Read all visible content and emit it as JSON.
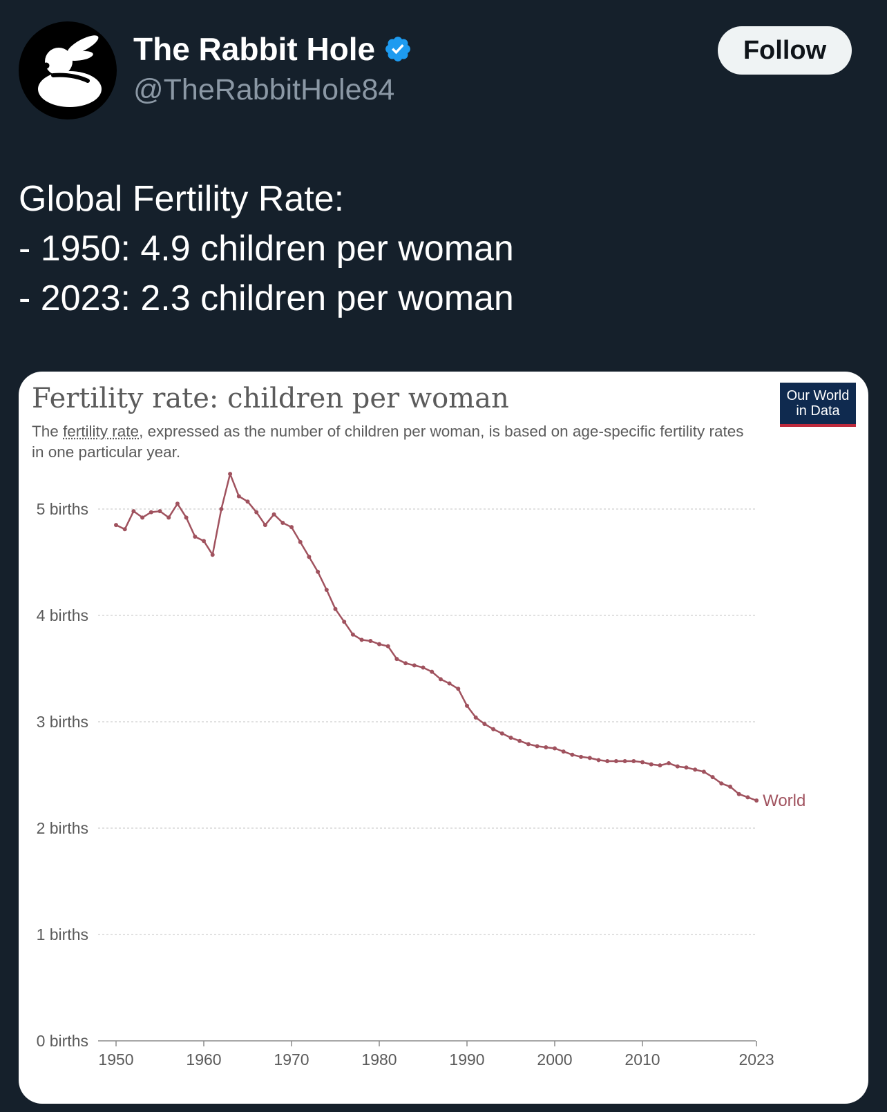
{
  "tweet": {
    "display_name": "The Rabbit Hole",
    "handle": "@TheRabbitHole84",
    "follow_label": "Follow",
    "text_lines": [
      "Global Fertility Rate:",
      "- 1950: 4.9 children per woman",
      "- 2023: 2.3 children per woman"
    ]
  },
  "card": {
    "title": "Fertility rate: children per woman",
    "subtitle_prefix": "The ",
    "subtitle_term": "fertility rate",
    "subtitle_rest": ", expressed as the number of children per woman, is based on age-specific fertility rates in one particular year.",
    "logo_line1": "Our World",
    "logo_line2": "in Data"
  },
  "colors": {
    "background": "#15202b",
    "series": "#a0525e",
    "verified": "#1d9bf0",
    "logo_bg": "#0f2a4f",
    "logo_accent": "#be2a3c"
  },
  "chart_data": {
    "type": "line",
    "title": "Fertility rate: children per woman",
    "ylim": [
      0,
      5.5
    ],
    "xlim": [
      1950,
      2023
    ],
    "y_ticks": [
      {
        "value": 0,
        "label": "0 births"
      },
      {
        "value": 1,
        "label": "1 births"
      },
      {
        "value": 2,
        "label": "2 births"
      },
      {
        "value": 3,
        "label": "3 births"
      },
      {
        "value": 4,
        "label": "4 births"
      },
      {
        "value": 5,
        "label": "5 births"
      }
    ],
    "x_ticks": [
      {
        "value": 1950,
        "label": "1950"
      },
      {
        "value": 1960,
        "label": "1960"
      },
      {
        "value": 1970,
        "label": "1970"
      },
      {
        "value": 1980,
        "label": "1980"
      },
      {
        "value": 1990,
        "label": "1990"
      },
      {
        "value": 2000,
        "label": "2000"
      },
      {
        "value": 2010,
        "label": "2010"
      },
      {
        "value": 2023,
        "label": "2023"
      }
    ],
    "grid": true,
    "series": [
      {
        "name": "World",
        "x": [
          1950,
          1951,
          1952,
          1953,
          1954,
          1955,
          1956,
          1957,
          1958,
          1959,
          1960,
          1961,
          1962,
          1963,
          1964,
          1965,
          1966,
          1967,
          1968,
          1969,
          1970,
          1971,
          1972,
          1973,
          1974,
          1975,
          1976,
          1977,
          1978,
          1979,
          1980,
          1981,
          1982,
          1983,
          1984,
          1985,
          1986,
          1987,
          1988,
          1989,
          1990,
          1991,
          1992,
          1993,
          1994,
          1995,
          1996,
          1997,
          1998,
          1999,
          2000,
          2001,
          2002,
          2003,
          2004,
          2005,
          2006,
          2007,
          2008,
          2009,
          2010,
          2011,
          2012,
          2013,
          2014,
          2015,
          2016,
          2017,
          2018,
          2019,
          2020,
          2021,
          2022,
          2023
        ],
        "y": [
          4.85,
          4.81,
          4.98,
          4.92,
          4.97,
          4.98,
          4.92,
          5.05,
          4.92,
          4.74,
          4.7,
          4.57,
          5.0,
          5.33,
          5.12,
          5.07,
          4.97,
          4.85,
          4.95,
          4.87,
          4.83,
          4.69,
          4.55,
          4.41,
          4.24,
          4.06,
          3.94,
          3.82,
          3.77,
          3.76,
          3.73,
          3.71,
          3.59,
          3.55,
          3.53,
          3.51,
          3.47,
          3.4,
          3.36,
          3.31,
          3.15,
          3.04,
          2.98,
          2.93,
          2.89,
          2.85,
          2.82,
          2.79,
          2.77,
          2.76,
          2.75,
          2.72,
          2.69,
          2.67,
          2.66,
          2.64,
          2.63,
          2.63,
          2.63,
          2.63,
          2.62,
          2.6,
          2.59,
          2.61,
          2.58,
          2.57,
          2.55,
          2.53,
          2.48,
          2.42,
          2.39,
          2.32,
          2.29,
          2.26
        ],
        "color": "#a0525e"
      }
    ]
  }
}
